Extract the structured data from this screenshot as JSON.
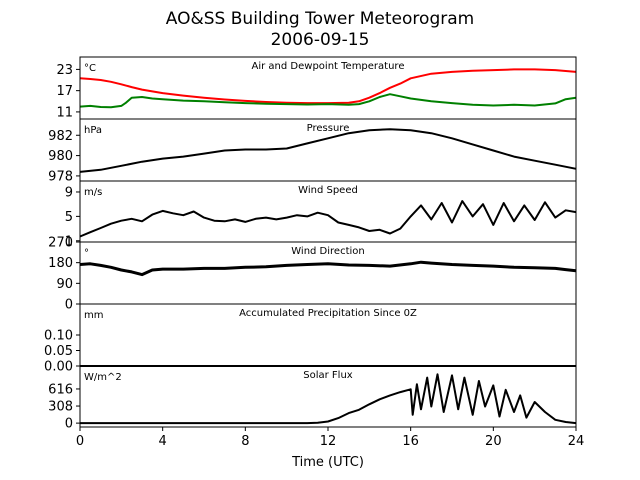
{
  "header": {
    "title_line1": "AO&SS Building Tower Meteorogram",
    "title_line2": "2006-09-15"
  },
  "colors": {
    "temperature": "#ff0000",
    "dewpoint": "#008000",
    "default": "#000000"
  },
  "chart_data": [
    {
      "type": "line",
      "title": "Air and Dewpoint Temperature",
      "unit": "°C",
      "ylim": [
        9,
        26.5
      ],
      "yticks": [
        11,
        17,
        23
      ],
      "xlim": [
        0,
        24
      ],
      "series": [
        {
          "color": "temperature",
          "x": [
            0,
            0.5,
            1,
            1.5,
            2,
            2.5,
            3,
            3.5,
            4,
            5,
            6,
            7,
            8,
            9,
            10,
            11,
            12,
            13,
            13.5,
            14,
            14.5,
            15,
            15.5,
            16,
            17,
            18,
            19,
            20,
            21,
            22,
            23,
            24
          ],
          "values": [
            20.5,
            20.3,
            20.0,
            19.5,
            18.8,
            18.0,
            17.3,
            16.8,
            16.3,
            15.6,
            15.0,
            14.5,
            14.1,
            13.8,
            13.6,
            13.5,
            13.5,
            13.6,
            14.0,
            15.0,
            16.3,
            17.8,
            19.0,
            20.5,
            21.8,
            22.3,
            22.6,
            22.8,
            23.0,
            23.0,
            22.8,
            22.3
          ]
        },
        {
          "color": "dewpoint",
          "x": [
            0,
            0.5,
            1,
            1.5,
            2,
            2.2,
            2.5,
            3,
            3.5,
            4,
            5,
            6,
            7,
            8,
            9,
            10,
            11,
            12,
            13,
            13.5,
            14,
            14.5,
            15,
            15.5,
            16,
            17,
            18,
            19,
            20,
            21,
            22,
            23,
            23.5,
            24
          ],
          "values": [
            12.5,
            12.7,
            12.4,
            12.3,
            12.7,
            13.5,
            15.0,
            15.2,
            14.8,
            14.6,
            14.2,
            14.0,
            13.7,
            13.5,
            13.3,
            13.2,
            13.1,
            13.2,
            13.0,
            13.2,
            14.0,
            15.2,
            16.0,
            15.4,
            14.8,
            14.0,
            13.5,
            13.0,
            12.8,
            13.0,
            12.8,
            13.4,
            14.6,
            15.0
          ]
        }
      ]
    },
    {
      "type": "line",
      "title": "Pressure",
      "unit": "hPa",
      "ylim": [
        977.5,
        983.6
      ],
      "yticks": [
        978,
        980,
        982
      ],
      "xlim": [
        0,
        24
      ],
      "series": [
        {
          "color": "default",
          "x": [
            0,
            1,
            2,
            3,
            4,
            5,
            6,
            7,
            8,
            9,
            10,
            11,
            12,
            13,
            14,
            15,
            16,
            17,
            18,
            19,
            20,
            21,
            22,
            23,
            24
          ],
          "values": [
            978.4,
            978.6,
            979.0,
            979.4,
            979.7,
            979.9,
            980.2,
            980.5,
            980.6,
            980.6,
            980.7,
            981.2,
            981.7,
            982.2,
            982.5,
            982.6,
            982.5,
            982.2,
            981.7,
            981.1,
            980.5,
            979.9,
            979.5,
            979.1,
            978.7
          ]
        }
      ]
    },
    {
      "type": "line",
      "title": "Wind Speed",
      "unit": "m/s",
      "ylim": [
        0.8,
        10.8
      ],
      "yticks": [
        1,
        5,
        9
      ],
      "xlim": [
        0,
        24
      ],
      "series": [
        {
          "color": "default",
          "x": [
            0,
            0.5,
            1,
            1.5,
            2,
            2.5,
            3,
            3.5,
            4,
            4.5,
            5,
            5.5,
            6,
            6.5,
            7,
            7.5,
            8,
            8.5,
            9,
            9.5,
            10,
            10.5,
            11,
            11.5,
            12,
            12.5,
            13,
            13.5,
            14,
            14.5,
            15,
            15.5,
            16,
            16.5,
            17,
            17.5,
            18,
            18.5,
            19,
            19.5,
            20,
            20.5,
            21,
            21.5,
            22,
            22.5,
            23,
            23.5,
            24
          ],
          "values": [
            1.7,
            2.4,
            3.1,
            3.8,
            4.3,
            4.6,
            4.2,
            5.3,
            5.9,
            5.5,
            5.2,
            5.8,
            4.8,
            4.3,
            4.2,
            4.5,
            4.1,
            4.6,
            4.8,
            4.5,
            4.8,
            5.2,
            5.0,
            5.6,
            5.2,
            4.0,
            3.6,
            3.2,
            2.6,
            2.8,
            2.2,
            3.0,
            5.0,
            6.8,
            4.5,
            7.2,
            4.0,
            7.5,
            5.0,
            7.0,
            3.6,
            7.2,
            4.2,
            6.8,
            4.4,
            7.3,
            4.8,
            6.0,
            5.7
          ]
        }
      ]
    },
    {
      "type": "line",
      "title": "Wind Direction",
      "unit": "°",
      "ylim": [
        0,
        270
      ],
      "yticks": [
        0,
        90,
        180,
        270
      ],
      "xlim": [
        0,
        24
      ],
      "series": [
        {
          "color": "default",
          "x": [
            0,
            0.5,
            1,
            1.5,
            2,
            2.5,
            3,
            3.5,
            4,
            5,
            6,
            7,
            8,
            9,
            10,
            11,
            12,
            13,
            14,
            15,
            16,
            16.5,
            17,
            18,
            19,
            20,
            21,
            22,
            23,
            23.5,
            24
          ],
          "values": [
            172,
            175,
            168,
            160,
            148,
            140,
            128,
            148,
            152,
            152,
            155,
            155,
            160,
            162,
            168,
            172,
            175,
            170,
            168,
            165,
            175,
            182,
            178,
            172,
            168,
            165,
            160,
            158,
            155,
            150,
            145
          ]
        }
      ]
    },
    {
      "type": "line",
      "title": "Accumulated Precipitation Since 0Z",
      "unit": "mm",
      "ylim": [
        0,
        0.2
      ],
      "yticks": [
        0,
        0.05,
        0.1
      ],
      "ytick_labels": [
        "0.00",
        "0.05",
        "0.10"
      ],
      "xlim": [
        0,
        24
      ],
      "series": [
        {
          "color": "default",
          "x": [
            0,
            24
          ],
          "values": [
            0,
            0
          ]
        }
      ]
    },
    {
      "type": "line",
      "title": "Solar Flux",
      "unit": "W/m^2",
      "ylim": [
        -70,
        1030
      ],
      "yticks": [
        0,
        308,
        616
      ],
      "xlim": [
        0,
        24
      ],
      "xticks": [
        0,
        4,
        8,
        12,
        16,
        20,
        24
      ],
      "xlabel": "Time (UTC)",
      "series": [
        {
          "color": "default",
          "x": [
            0,
            6,
            11,
            11.5,
            12,
            12.5,
            13,
            13.5,
            14,
            14.5,
            15,
            15.5,
            16,
            16.1,
            16.3,
            16.5,
            16.8,
            17,
            17.3,
            17.6,
            18,
            18.3,
            18.6,
            19,
            19.3,
            19.6,
            20,
            20.3,
            20.6,
            21,
            21.3,
            21.6,
            22,
            22.5,
            23,
            23.5,
            24
          ],
          "values": [
            0,
            0,
            0,
            5,
            30,
            90,
            180,
            240,
            340,
            430,
            500,
            560,
            610,
            150,
            700,
            250,
            820,
            300,
            880,
            200,
            860,
            250,
            820,
            150,
            760,
            300,
            680,
            120,
            600,
            200,
            500,
            100,
            380,
            200,
            60,
            20,
            0
          ]
        }
      ]
    }
  ]
}
